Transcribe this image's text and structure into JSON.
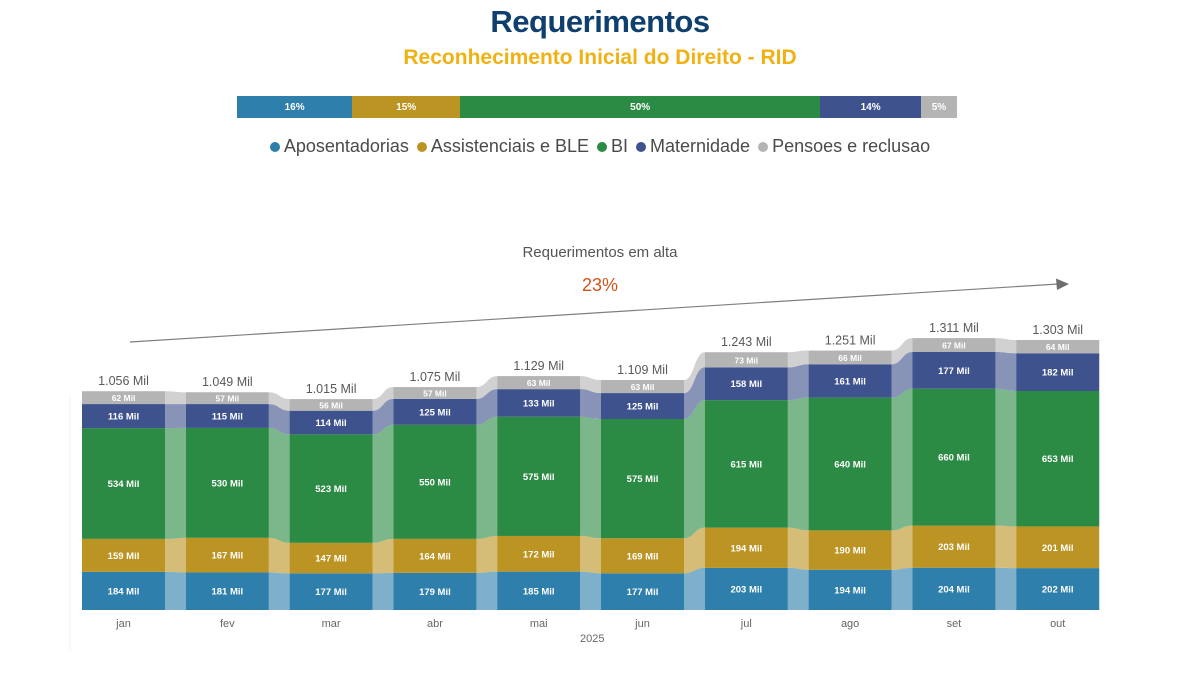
{
  "header": {
    "title": "Requerimentos",
    "subtitle": "Reconhecimento Inicial do Direito - RID"
  },
  "share_bar": [
    {
      "name": "Aposentadorias",
      "label": "16%",
      "value": 16,
      "color": "#2e7fab"
    },
    {
      "name": "Assistenciais e BLE",
      "label": "15%",
      "value": 15,
      "color": "#bb9424"
    },
    {
      "name": "BI",
      "label": "50%",
      "value": 50,
      "color": "#2b8a43"
    },
    {
      "name": "Maternidade",
      "label": "14%",
      "value": 14,
      "color": "#3e528d"
    },
    {
      "name": "Pensoes e reclusao",
      "label": "5%",
      "value": 5,
      "color": "#b4b4b4"
    }
  ],
  "legend": [
    {
      "label": "Aposentadorias",
      "color": "#2e7fab"
    },
    {
      "label": "Assistenciais e BLE",
      "color": "#bb9424"
    },
    {
      "label": "BI",
      "color": "#2b8a43"
    },
    {
      "label": "Maternidade",
      "color": "#3e528d"
    },
    {
      "label": "Pensoes e reclusao",
      "color": "#b4b4b4"
    }
  ],
  "trend": {
    "label": "Requerimentos em alta",
    "percent": "23%"
  },
  "chart_data": {
    "type": "bar",
    "stacked": true,
    "title": "Requerimentos",
    "subtitle": "Reconhecimento Inicial do Direito - RID",
    "xlabel": "2025",
    "ylabel": "",
    "unit": "Mil",
    "categories": [
      "jan",
      "fev",
      "mar",
      "abr",
      "mai",
      "jun",
      "jul",
      "ago",
      "set",
      "out"
    ],
    "series": [
      {
        "name": "Aposentadorias",
        "color": "#2e7fab",
        "values": [
          184,
          181,
          177,
          179,
          185,
          177,
          203,
          194,
          204,
          202
        ]
      },
      {
        "name": "Assistenciais e BLE",
        "color": "#bb9424",
        "values": [
          159,
          167,
          147,
          164,
          172,
          169,
          194,
          190,
          203,
          201
        ]
      },
      {
        "name": "BI",
        "color": "#2b8a43",
        "values": [
          534,
          530,
          523,
          550,
          575,
          575,
          615,
          640,
          660,
          653
        ]
      },
      {
        "name": "Maternidade",
        "color": "#3e528d",
        "values": [
          116,
          115,
          114,
          125,
          133,
          125,
          158,
          161,
          177,
          182
        ]
      },
      {
        "name": "Pensoes e reclusao",
        "color": "#b4b4b4",
        "values": [
          62,
          57,
          56,
          57,
          63,
          63,
          73,
          66,
          67,
          64
        ]
      }
    ],
    "totals": [
      1056,
      1049,
      1015,
      1075,
      1129,
      1109,
      1243,
      1251,
      1311,
      1303
    ],
    "total_labels": [
      "1.056 Mil",
      "1.049 Mil",
      "1.015 Mil",
      "1.075 Mil",
      "1.129 Mil",
      "1.109 Mil",
      "1.243 Mil",
      "1.251 Mil",
      "1.311 Mil",
      "1.303 Mil"
    ],
    "ylim": [
      0,
      1311
    ],
    "grid": false,
    "legend_position": "top"
  }
}
